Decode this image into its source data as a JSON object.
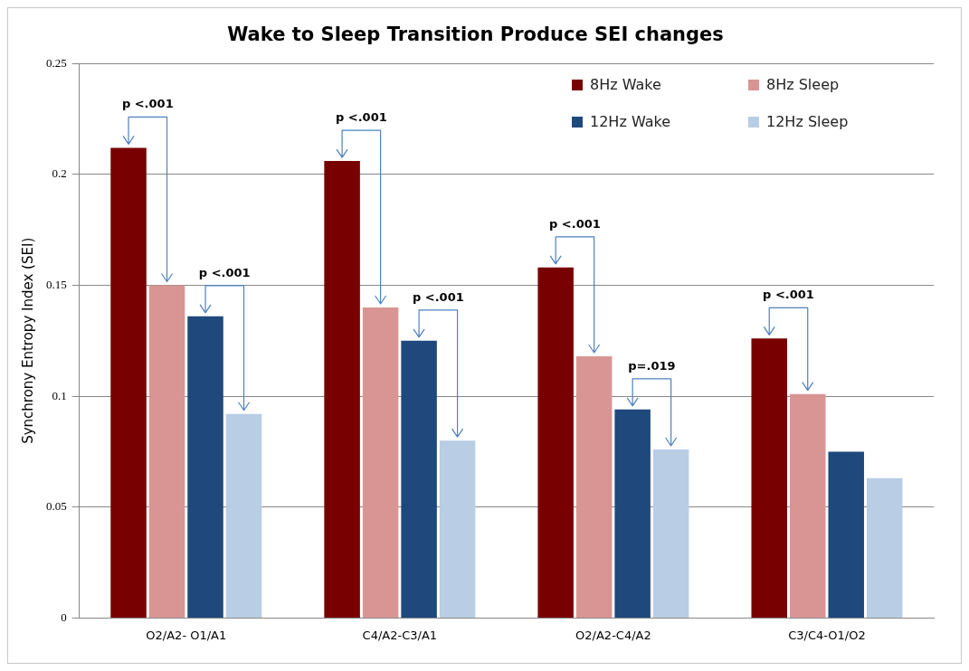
{
  "chart_data": {
    "type": "bar",
    "title": "Wake to Sleep Transition Produce SEI changes",
    "ylabel": "Synchrony Entropy Index (SEI)",
    "categories": [
      "O2/A2- O1/A1",
      "C4/A2-C3/A1",
      "O2/A2-C4/A2",
      "C3/C4-O1/O2"
    ],
    "series": [
      {
        "name": "8Hz Wake",
        "color": "#780000",
        "values": [
          0.212,
          0.206,
          0.158,
          0.126
        ]
      },
      {
        "name": "8Hz Sleep",
        "color": "#d99594",
        "values": [
          0.15,
          0.14,
          0.118,
          0.101
        ]
      },
      {
        "name": "12Hz Wake",
        "color": "#1f497d",
        "values": [
          0.136,
          0.125,
          0.094,
          0.075
        ]
      },
      {
        "name": "12Hz Sleep",
        "color": "#b9cde5",
        "values": [
          0.092,
          0.08,
          0.076,
          0.063
        ]
      }
    ],
    "ylim": [
      0,
      0.25
    ],
    "yticks": [
      0,
      0.05,
      0.1,
      0.15,
      0.2,
      0.25
    ],
    "grid": "y",
    "legend": "top right",
    "annotations": [
      "p <.001",
      "p <.001",
      "p <.001",
      "p <.001",
      "p <.001",
      "p=.019",
      "p <.001"
    ]
  }
}
